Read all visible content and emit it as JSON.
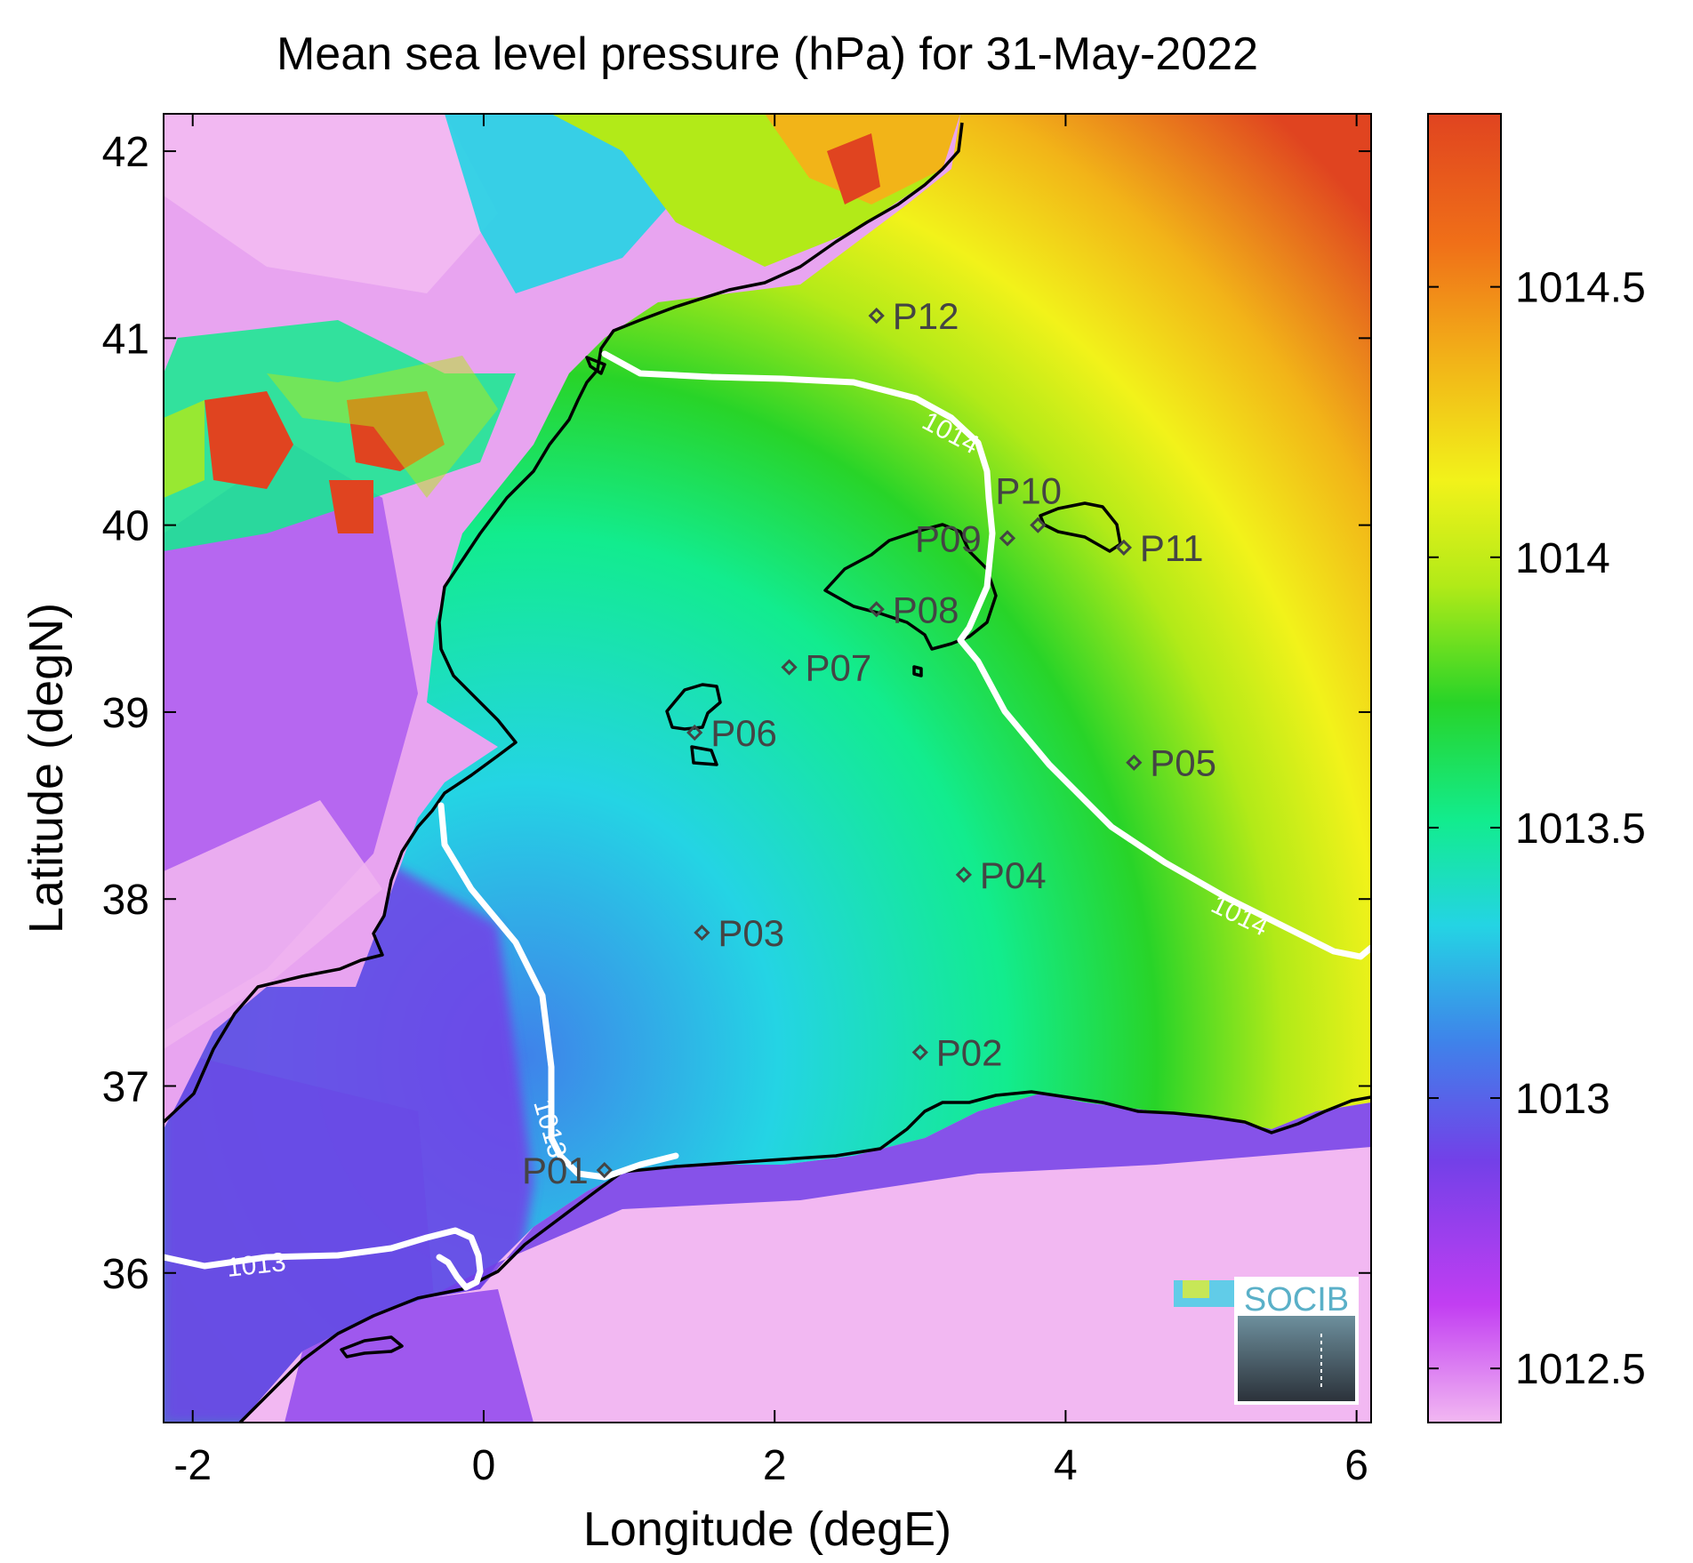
{
  "chart_data": {
    "type": "heatmap",
    "title": "Mean sea level pressure (hPa) for 31-May-2022",
    "xlabel": "Longitude (degE)",
    "ylabel": "Latitude (degN)",
    "xlim": [
      -2.2,
      6.1
    ],
    "ylim": [
      35.2,
      42.2
    ],
    "x_ticks": [
      -2,
      0,
      2,
      4,
      6
    ],
    "y_ticks": [
      36,
      37,
      38,
      39,
      40,
      41,
      42
    ],
    "x_tick_labels": [
      "-2",
      "0",
      "2",
      "4",
      "6"
    ],
    "y_tick_labels": [
      "36",
      "37",
      "38",
      "39",
      "40",
      "41",
      "42"
    ],
    "colorbar": {
      "range": [
        1012.4,
        1014.82
      ],
      "ticks": [
        1012.5,
        1013,
        1013.5,
        1014,
        1014.5
      ],
      "tick_labels": [
        "1012.5",
        "1013",
        "1013.5",
        "1014",
        "1014.5"
      ],
      "colormap": [
        "#f2b8f2",
        "#c23ef2",
        "#7340e8",
        "#3f82ea",
        "#24d4e4",
        "#12ec8e",
        "#28d428",
        "#b2ea18",
        "#f2f21a",
        "#f2b418",
        "#f07018",
        "#e04420"
      ]
    },
    "contours": [
      {
        "label": "1013",
        "level": 1013
      },
      {
        "label": "1014",
        "level": 1014
      }
    ],
    "stations": [
      {
        "name": "P01",
        "lon": 0.83,
        "lat": 36.55
      },
      {
        "name": "P02",
        "lon": 3.0,
        "lat": 37.18
      },
      {
        "name": "P03",
        "lon": 1.5,
        "lat": 37.82
      },
      {
        "name": "P04",
        "lon": 3.3,
        "lat": 38.13
      },
      {
        "name": "P05",
        "lon": 4.47,
        "lat": 38.73
      },
      {
        "name": "P06",
        "lon": 1.45,
        "lat": 38.89
      },
      {
        "name": "P07",
        "lon": 2.1,
        "lat": 39.24
      },
      {
        "name": "P08",
        "lon": 2.7,
        "lat": 39.55
      },
      {
        "name": "P09",
        "lon": 3.6,
        "lat": 39.93
      },
      {
        "name": "P10",
        "lon": 3.81,
        "lat": 40.0
      },
      {
        "name": "P11",
        "lon": 4.4,
        "lat": 39.88
      },
      {
        "name": "P12",
        "lon": 2.7,
        "lat": 41.12
      }
    ]
  },
  "logo": {
    "text": "SOCIB"
  }
}
